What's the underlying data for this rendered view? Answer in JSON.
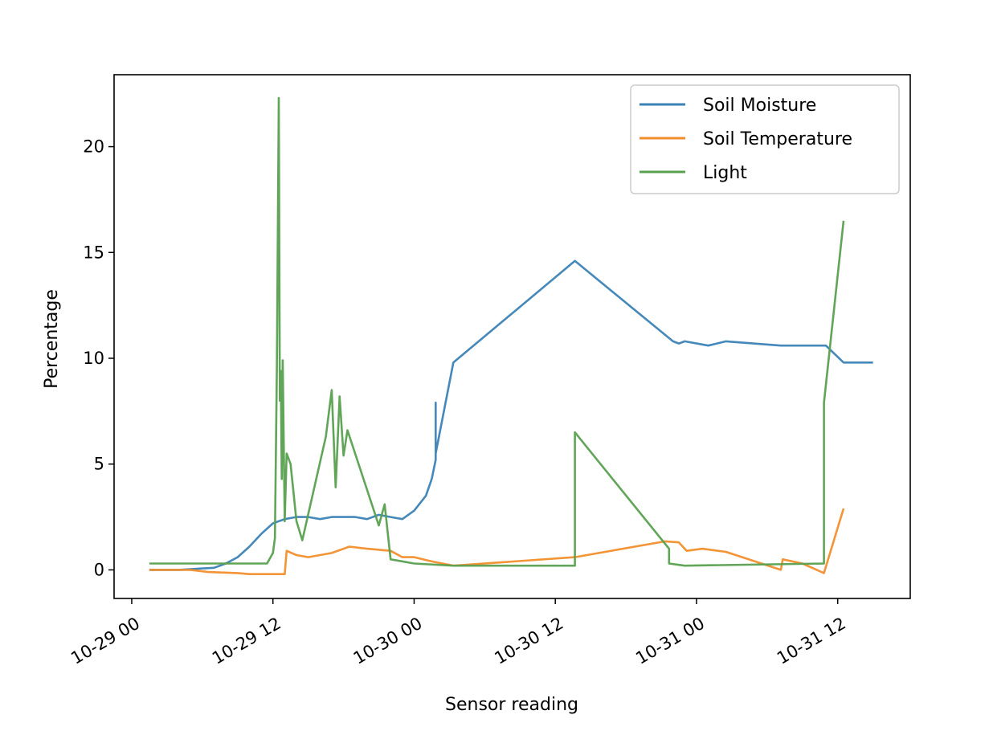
{
  "chart_data": {
    "type": "line",
    "title": "",
    "xlabel": "Sensor reading",
    "ylabel": "Percentage",
    "x_axis_type": "datetime",
    "xlim": [
      "2020-10-28T22:30",
      "2020-10-31T18:10"
    ],
    "ylim": [
      -1.35,
      23.4
    ],
    "x_ticks": [
      {
        "value": "2020-10-29T00:00",
        "label": "10-29 00"
      },
      {
        "value": "2020-10-29T12:00",
        "label": "10-29 12"
      },
      {
        "value": "2020-10-30T00:00",
        "label": "10-30 00"
      },
      {
        "value": "2020-10-30T12:00",
        "label": "10-30 12"
      },
      {
        "value": "2020-10-31T00:00",
        "label": "10-31 00"
      },
      {
        "value": "2020-10-31T12:00",
        "label": "10-31 12"
      }
    ],
    "y_ticks": [
      {
        "value": 0,
        "label": "0"
      },
      {
        "value": 5,
        "label": "5"
      },
      {
        "value": 10,
        "label": "10"
      },
      {
        "value": 15,
        "label": "15"
      },
      {
        "value": 20,
        "label": "20"
      }
    ],
    "grid": false,
    "legend": {
      "position": "top-right"
    },
    "series": [
      {
        "name": "Soil Moisture",
        "color": "#3b82b6",
        "points": [
          [
            "2020-10-29T01:30",
            0.0
          ],
          [
            "2020-10-29T04:00",
            0.0
          ],
          [
            "2020-10-29T07:00",
            0.1
          ],
          [
            "2020-10-29T08:00",
            0.3
          ],
          [
            "2020-10-29T09:00",
            0.6
          ],
          [
            "2020-10-29T10:00",
            1.1
          ],
          [
            "2020-10-29T11:00",
            1.7
          ],
          [
            "2020-10-29T12:00",
            2.2
          ],
          [
            "2020-10-29T13:00",
            2.4
          ],
          [
            "2020-10-29T14:00",
            2.5
          ],
          [
            "2020-10-29T15:00",
            2.5
          ],
          [
            "2020-10-29T16:00",
            2.4
          ],
          [
            "2020-10-29T17:00",
            2.5
          ],
          [
            "2020-10-29T18:00",
            2.5
          ],
          [
            "2020-10-29T19:00",
            2.5
          ],
          [
            "2020-10-29T20:00",
            2.4
          ],
          [
            "2020-10-29T21:00",
            2.6
          ],
          [
            "2020-10-29T22:00",
            2.5
          ],
          [
            "2020-10-29T23:00",
            2.4
          ],
          [
            "2020-10-30T00:00",
            2.8
          ],
          [
            "2020-10-30T01:00",
            3.5
          ],
          [
            "2020-10-30T01:30",
            4.3
          ],
          [
            "2020-10-30T01:50",
            5.2
          ],
          [
            "2020-10-30T01:50",
            7.9
          ],
          [
            "2020-10-30T01:50",
            5.5
          ],
          [
            "2020-10-30T03:20",
            9.8
          ],
          [
            "2020-10-30T13:40",
            14.6
          ],
          [
            "2020-10-30T22:00",
            10.8
          ],
          [
            "2020-10-30T22:30",
            10.7
          ],
          [
            "2020-10-30T23:00",
            10.8
          ],
          [
            "2020-10-31T01:00",
            10.6
          ],
          [
            "2020-10-31T02:30",
            10.8
          ],
          [
            "2020-10-31T07:10",
            10.6
          ],
          [
            "2020-10-31T11:00",
            10.6
          ],
          [
            "2020-10-31T12:30",
            9.8
          ],
          [
            "2020-10-31T15:00",
            9.8
          ]
        ]
      },
      {
        "name": "Soil Temperature",
        "color": "#f28e2b",
        "points": [
          [
            "2020-10-29T01:30",
            0.0
          ],
          [
            "2020-10-29T05:00",
            0.0
          ],
          [
            "2020-10-29T06:30",
            -0.1
          ],
          [
            "2020-10-29T09:00",
            -0.15
          ],
          [
            "2020-10-29T10:00",
            -0.2
          ],
          [
            "2020-10-29T12:00",
            -0.2
          ],
          [
            "2020-10-29T13:00",
            -0.2
          ],
          [
            "2020-10-29T13:10",
            0.9
          ],
          [
            "2020-10-29T14:00",
            0.7
          ],
          [
            "2020-10-29T15:00",
            0.6
          ],
          [
            "2020-10-29T16:00",
            0.7
          ],
          [
            "2020-10-29T17:00",
            0.8
          ],
          [
            "2020-10-29T18:30",
            1.1
          ],
          [
            "2020-10-29T20:00",
            1.0
          ],
          [
            "2020-10-29T22:00",
            0.9
          ],
          [
            "2020-10-29T23:00",
            0.6
          ],
          [
            "2020-10-30T00:00",
            0.6
          ],
          [
            "2020-10-30T01:30",
            0.4
          ],
          [
            "2020-10-30T03:20",
            0.2
          ],
          [
            "2020-10-30T13:40",
            0.6
          ],
          [
            "2020-10-30T21:20",
            1.35
          ],
          [
            "2020-10-30T22:30",
            1.3
          ],
          [
            "2020-10-30T23:10",
            0.9
          ],
          [
            "2020-10-31T00:30",
            1.0
          ],
          [
            "2020-10-31T02:30",
            0.85
          ],
          [
            "2020-10-31T07:10",
            0.0
          ],
          [
            "2020-10-31T07:20",
            0.5
          ],
          [
            "2020-10-31T09:00",
            0.3
          ],
          [
            "2020-10-31T10:50",
            -0.15
          ],
          [
            "2020-10-31T12:30",
            2.9
          ]
        ]
      },
      {
        "name": "Light",
        "color": "#59a14f",
        "points": [
          [
            "2020-10-29T01:30",
            0.3
          ],
          [
            "2020-10-29T11:30",
            0.3
          ],
          [
            "2020-10-29T12:00",
            0.8
          ],
          [
            "2020-10-29T12:10",
            1.5
          ],
          [
            "2020-10-29T12:20",
            9.5
          ],
          [
            "2020-10-29T12:25",
            15.8
          ],
          [
            "2020-10-29T12:30",
            22.3
          ],
          [
            "2020-10-29T12:35",
            8.0
          ],
          [
            "2020-10-29T12:40",
            9.4
          ],
          [
            "2020-10-29T12:45",
            4.3
          ],
          [
            "2020-10-29T12:50",
            9.9
          ],
          [
            "2020-10-29T13:00",
            2.3
          ],
          [
            "2020-10-29T13:10",
            5.5
          ],
          [
            "2020-10-29T13:30",
            5.0
          ],
          [
            "2020-10-29T14:00",
            2.3
          ],
          [
            "2020-10-29T14:30",
            1.4
          ],
          [
            "2020-10-29T16:30",
            6.3
          ],
          [
            "2020-10-29T17:00",
            8.5
          ],
          [
            "2020-10-29T17:20",
            3.9
          ],
          [
            "2020-10-29T17:40",
            8.2
          ],
          [
            "2020-10-29T18:00",
            5.4
          ],
          [
            "2020-10-29T18:20",
            6.6
          ],
          [
            "2020-10-29T21:00",
            2.1
          ],
          [
            "2020-10-29T21:30",
            3.1
          ],
          [
            "2020-10-29T22:00",
            0.5
          ],
          [
            "2020-10-30T00:00",
            0.3
          ],
          [
            "2020-10-30T03:20",
            0.2
          ],
          [
            "2020-10-30T13:40",
            0.2
          ],
          [
            "2020-10-30T13:40",
            6.5
          ],
          [
            "2020-10-30T21:40",
            1.0
          ],
          [
            "2020-10-30T21:40",
            0.3
          ],
          [
            "2020-10-30T23:00",
            0.2
          ],
          [
            "2020-10-31T10:50",
            0.3
          ],
          [
            "2020-10-31T10:50",
            7.9
          ],
          [
            "2020-10-31T12:30",
            16.5
          ]
        ]
      }
    ]
  }
}
